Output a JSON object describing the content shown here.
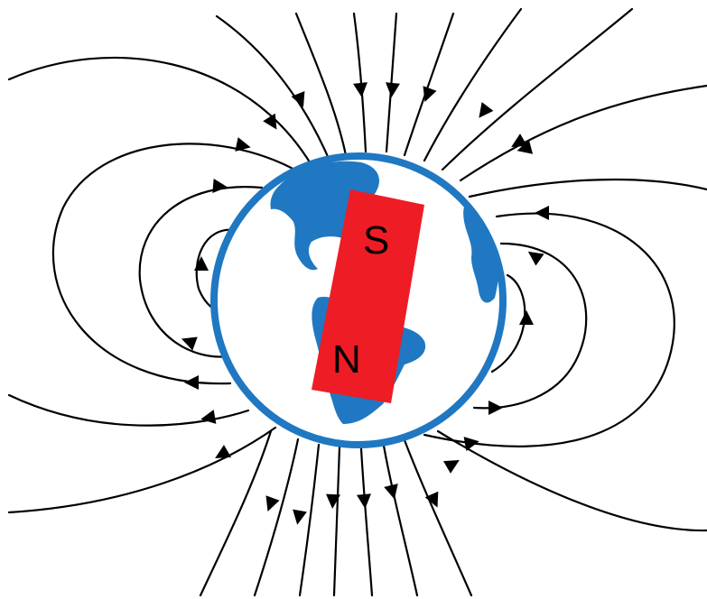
{
  "diagram": {
    "magnet": {
      "pole_top": "S",
      "pole_bottom": "N"
    },
    "colors": {
      "background": "#ffffff",
      "earth_outline": "#1f78c1",
      "land": "#1f78c1",
      "ocean": "#ffffff",
      "magnet": "#ee1c25",
      "field_lines": "#000000"
    }
  }
}
